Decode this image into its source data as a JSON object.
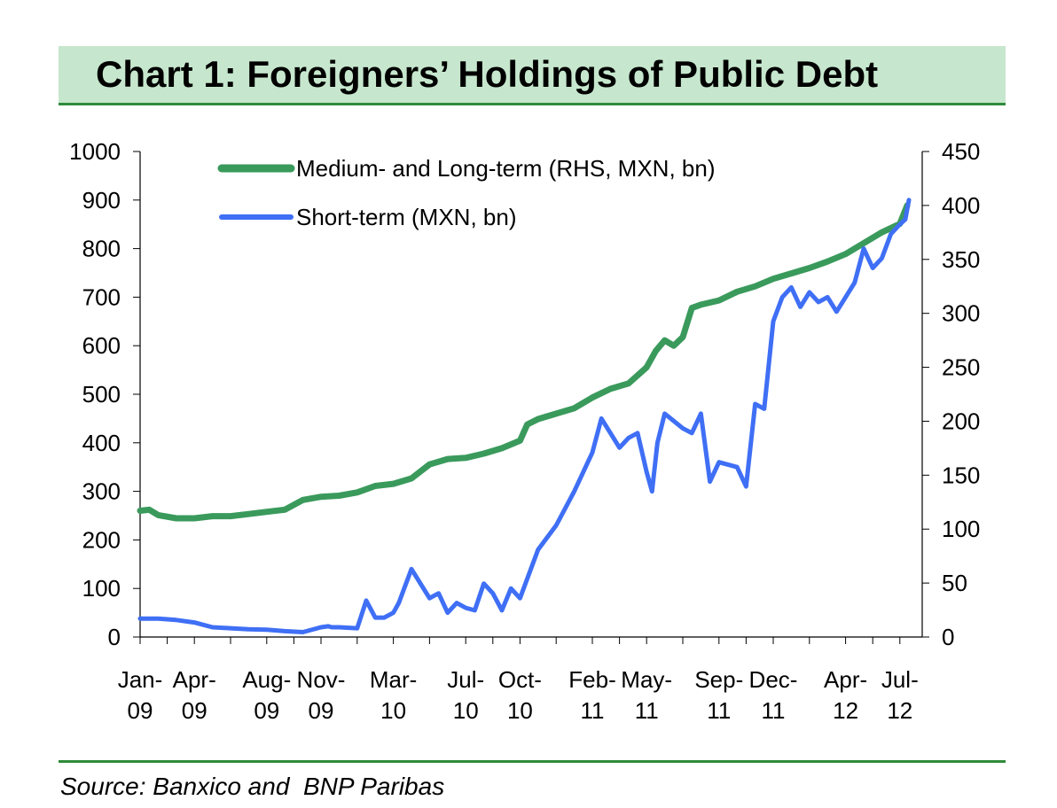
{
  "header": {
    "title": "Chart 1: Foreigners’ Holdings of Public Debt"
  },
  "footer": {
    "source": "Source: Banxico and  BNP Paribas"
  },
  "chart_data": {
    "type": "line",
    "title": "Chart 1: Foreigners’ Holdings of Public Debt",
    "xlabel": "",
    "ylabel": "",
    "ylim": [
      0,
      1000
    ],
    "y2lim": [
      0,
      450
    ],
    "yticks": [
      0,
      100,
      200,
      300,
      400,
      500,
      600,
      700,
      800,
      900,
      1000
    ],
    "y2ticks": [
      0,
      50,
      100,
      150,
      200,
      250,
      300,
      350,
      400,
      450
    ],
    "grid": false,
    "legend": "top-left",
    "x_tick_labels": [
      [
        "Jan-",
        "09"
      ],
      [
        "Apr-",
        "09"
      ],
      [
        "Aug-",
        "09"
      ],
      [
        "Nov-",
        "09"
      ],
      [
        "Mar-",
        "10"
      ],
      [
        "Jul-",
        "10"
      ],
      [
        "Oct-",
        "10"
      ],
      [
        "Feb-",
        "11"
      ],
      [
        "May-",
        "11"
      ],
      [
        "Sep-",
        "11"
      ],
      [
        "Dec-",
        "11"
      ],
      [
        "Apr-",
        "12"
      ],
      [
        "Jul-",
        "12"
      ]
    ],
    "x_tick_months": [
      0,
      3,
      7,
      10,
      14,
      18,
      21,
      25,
      28,
      32,
      35,
      39,
      42
    ],
    "series": [
      {
        "name": "Medium- and Long-term (RHS, MXN, bn)",
        "axis": "right",
        "color": "#3a9a5c",
        "x": [
          0,
          0.5,
          1,
          2,
          3,
          4,
          5,
          6,
          7,
          8,
          9,
          10,
          11,
          12,
          13,
          14,
          15,
          16,
          17,
          18,
          19,
          20,
          21,
          21.4,
          22,
          23,
          24,
          25,
          26,
          27,
          28,
          28.5,
          29,
          29.5,
          30,
          30.5,
          31,
          32,
          33,
          34,
          35,
          36,
          37,
          38,
          39,
          40,
          41,
          42,
          42.4
        ],
        "values": [
          117,
          118,
          113,
          110,
          110,
          112,
          112,
          114,
          116,
          118,
          127,
          130,
          131,
          134,
          140,
          142,
          147,
          160,
          165,
          166,
          170,
          175,
          182,
          197,
          202,
          207,
          212,
          222,
          230,
          235,
          250,
          265,
          275,
          270,
          278,
          305,
          308,
          312,
          320,
          325,
          332,
          337,
          342,
          348,
          355,
          365,
          375,
          383,
          400
        ]
      },
      {
        "name": "Short-term (MXN, bn)",
        "axis": "left",
        "color": "#3f6ff5",
        "x": [
          0,
          1,
          2,
          3,
          4,
          5,
          6,
          7,
          8,
          9,
          10,
          10.4,
          10.6,
          11,
          12,
          12.5,
          13,
          13.5,
          14,
          14.3,
          15,
          16,
          16.5,
          17,
          17.5,
          18,
          18.5,
          19,
          19.5,
          20,
          20.5,
          21,
          22,
          23,
          24,
          25,
          25.5,
          26,
          26.5,
          27,
          27.5,
          28,
          28.3,
          28.6,
          29,
          30,
          30.5,
          31,
          31.5,
          32,
          33,
          33.5,
          34,
          34.5,
          35,
          35.5,
          36,
          36.5,
          37,
          37.5,
          38,
          38.5,
          39,
          39.5,
          40,
          40.5,
          41,
          41.5,
          42,
          42.3,
          42.5
        ],
        "values": [
          38,
          38,
          35,
          30,
          20,
          18,
          16,
          15,
          12,
          10,
          20,
          22,
          20,
          20,
          18,
          75,
          40,
          40,
          50,
          70,
          140,
          80,
          90,
          50,
          70,
          60,
          55,
          110,
          90,
          55,
          100,
          80,
          180,
          230,
          300,
          380,
          450,
          420,
          390,
          410,
          420,
          340,
          300,
          400,
          460,
          430,
          420,
          460,
          320,
          360,
          350,
          310,
          480,
          470,
          650,
          700,
          720,
          680,
          710,
          690,
          700,
          670,
          700,
          730,
          800,
          760,
          780,
          830,
          850,
          860,
          900
        ]
      }
    ]
  }
}
